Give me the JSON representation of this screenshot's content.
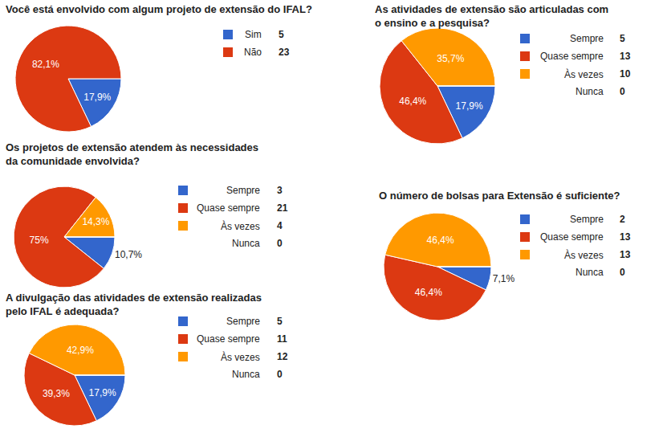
{
  "chart_data": [
    {
      "type": "pie",
      "title": [
        "Você está envolvido com algum projeto de extensão do IFAL?"
      ],
      "categories": [
        "Sim",
        "Não"
      ],
      "values": [
        17.9,
        82.1
      ],
      "value_labels": [
        "17,9%",
        "82,1%"
      ],
      "counts": [
        5,
        23
      ],
      "colors": [
        "#3366cc",
        "#dc3912"
      ],
      "data_labels": true
    },
    {
      "type": "pie",
      "title": [
        "Os projetos de extensão atendem às necessidades",
        "da comunidade envolvida?"
      ],
      "categories": [
        "Sempre",
        "Quase sempre",
        "Às vezes",
        "Nunca"
      ],
      "values": [
        10.7,
        75,
        14.3,
        0
      ],
      "value_labels": [
        "10,7%",
        "75%",
        "14,3%",
        null
      ],
      "counts": [
        3,
        21,
        4,
        0
      ],
      "colors": [
        "#3366cc",
        "#dc3912",
        "#ff9900",
        null
      ],
      "data_labels": true
    },
    {
      "type": "pie",
      "title": [
        "A divulgação das atividades de extensão realizadas",
        "pelo IFAL é adequada?"
      ],
      "categories": [
        "Sempre",
        "Quase sempre",
        "Às vezes",
        "Nunca"
      ],
      "values": [
        17.9,
        39.3,
        42.9,
        0
      ],
      "value_labels": [
        "17,9%",
        "39,3%",
        "42,9%",
        null
      ],
      "counts": [
        5,
        11,
        12,
        0
      ],
      "colors": [
        "#3366cc",
        "#dc3912",
        "#ff9900",
        null
      ],
      "data_labels": true
    },
    {
      "type": "pie",
      "title": [
        "As atividades de extensão são articuladas com",
        "o ensino e a pesquisa?"
      ],
      "categories": [
        "Sempre",
        "Quase sempre",
        "Às vezes",
        "Nunca"
      ],
      "values": [
        17.9,
        46.4,
        35.7,
        0
      ],
      "value_labels": [
        "17,9%",
        "46,4%",
        "35,7%",
        null
      ],
      "counts": [
        5,
        13,
        10,
        0
      ],
      "colors": [
        "#3366cc",
        "#dc3912",
        "#ff9900",
        null
      ],
      "data_labels": true
    },
    {
      "type": "pie",
      "title": [
        "O número de bolsas para Extensão é suficiente?"
      ],
      "categories": [
        "Sempre",
        "Quase sempre",
        "Às vezes",
        "Nunca"
      ],
      "values": [
        7.1,
        46.4,
        46.4,
        0
      ],
      "value_labels": [
        "7,1%",
        "46,4%",
        "46,4%",
        null
      ],
      "counts": [
        2,
        13,
        13,
        0
      ],
      "colors": [
        "#3366cc",
        "#dc3912",
        "#ff9900",
        null
      ],
      "data_labels": true
    }
  ]
}
